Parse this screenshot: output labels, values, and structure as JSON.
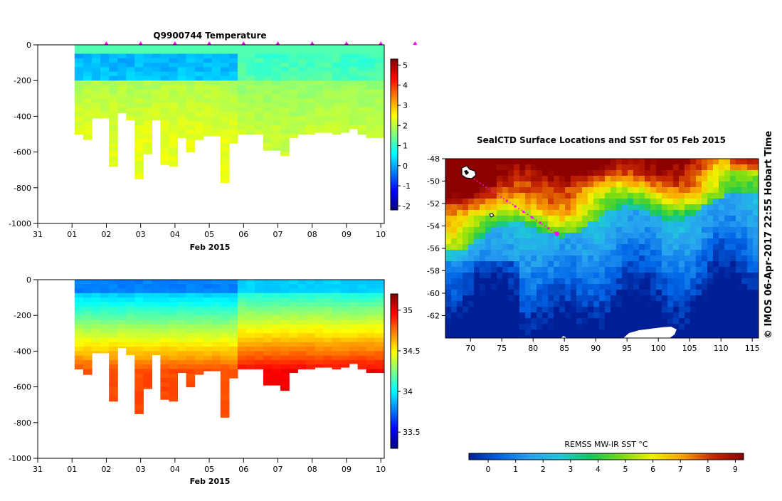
{
  "chart_data": [
    {
      "type": "heatmap",
      "title": "Q9900744  Temperature",
      "variable": "temperature",
      "xlabel": "Feb 2015",
      "ylabel": "",
      "x_ticks": [
        "31",
        "01",
        "02",
        "03",
        "04",
        "05",
        "06",
        "07",
        "08",
        "09",
        "10"
      ],
      "xlim": [
        -1,
        9.1
      ],
      "y_ticks": [
        "0",
        "-200",
        "-400",
        "-600",
        "-800",
        "-1000"
      ],
      "ylim": [
        -1000,
        0
      ],
      "colorbar": {
        "ticks": [
          "5",
          "4",
          "3",
          "2",
          "1",
          "0",
          "-1",
          "-2"
        ],
        "range": [
          -2.2,
          5.3
        ]
      },
      "profile_days": [
        0.2,
        0.45,
        0.7,
        0.95,
        1.2,
        1.45,
        1.7,
        1.95,
        2.2,
        2.45,
        2.7,
        2.95,
        3.2,
        3.45,
        3.7,
        3.95,
        4.2,
        4.45,
        4.7,
        4.95,
        5.2,
        5.45,
        5.7,
        5.95,
        6.2,
        6.45,
        6.7,
        6.95,
        7.2,
        7.45,
        7.7,
        7.95,
        8.2,
        8.45,
        8.7,
        8.95
      ],
      "profile_max_depths": [
        500,
        530,
        410,
        410,
        680,
        380,
        420,
        750,
        610,
        420,
        670,
        680,
        520,
        600,
        530,
        510,
        510,
        770,
        550,
        500,
        500,
        500,
        590,
        590,
        620,
        520,
        500,
        500,
        490,
        490,
        500,
        490,
        470,
        500,
        520,
        520
      ],
      "surface_marker_days": [
        1.0,
        2.0,
        3.0,
        4.0,
        5.0,
        6.0,
        7.0,
        8.0,
        9.0,
        10.0
      ]
    },
    {
      "type": "heatmap",
      "title": "",
      "variable": "salinity",
      "xlabel": "Feb 2015",
      "ylabel": "",
      "x_ticks": [
        "31",
        "01",
        "02",
        "03",
        "04",
        "05",
        "06",
        "07",
        "08",
        "09",
        "10"
      ],
      "xlim": [
        -1,
        9.1
      ],
      "y_ticks": [
        "0",
        "-200",
        "-400",
        "-600",
        "-800",
        "-1000"
      ],
      "ylim": [
        -1000,
        0
      ],
      "colorbar": {
        "ticks": [
          "35",
          "34.5",
          "34",
          "33.5"
        ],
        "range": [
          33.3,
          35.2
        ]
      }
    },
    {
      "type": "heatmap",
      "title": "SealCTD Surface Locations and SST for 05 Feb 2015",
      "xlabel": "",
      "ylabel": "",
      "x_ticks": [
        "70",
        "75",
        "80",
        "85",
        "90",
        "95",
        "100",
        "105",
        "110",
        "115"
      ],
      "xlim": [
        66,
        116
      ],
      "y_ticks": [
        "-48",
        "-50",
        "-52",
        "-54",
        "-56",
        "-58",
        "-60",
        "-62"
      ],
      "ylim": [
        -64,
        -48
      ],
      "track": {
        "start": [
          70.5,
          -49.8
        ],
        "end": [
          83.8,
          -54.7
        ]
      },
      "colorbar": {
        "label": "REMSS MW-IR SST °C",
        "ticks": [
          "0",
          "1",
          "2",
          "3",
          "4",
          "5",
          "6",
          "7",
          "8",
          "9"
        ],
        "range": [
          -0.7,
          9.3
        ]
      }
    }
  ],
  "credit": "© IMOS 06-Apr-2017 22:55 Hobart Time"
}
